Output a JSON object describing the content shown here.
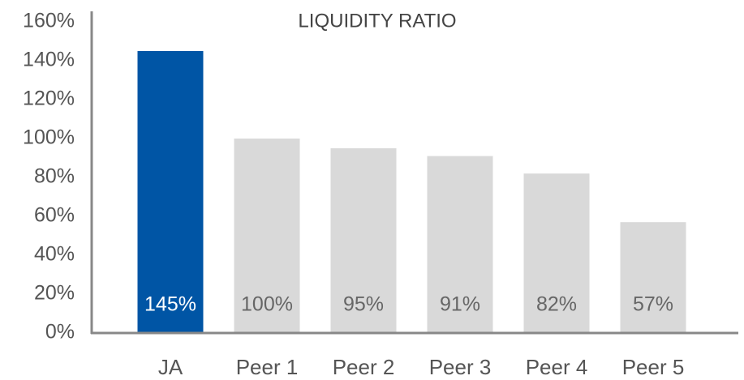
{
  "chart_data": {
    "type": "bar",
    "title": "LIQUIDITY RATIO",
    "categories": [
      "JA",
      "Peer 1",
      "Peer 2",
      "Peer 3",
      "Peer 4",
      "Peer 5"
    ],
    "values": [
      145,
      100,
      95,
      91,
      82,
      57
    ],
    "value_labels": [
      "145%",
      "100%",
      "95%",
      "91%",
      "82%",
      "57%"
    ],
    "colors": [
      "#0055a5",
      "#d9d9d9",
      "#d9d9d9",
      "#d9d9d9",
      "#d9d9d9",
      "#d9d9d9"
    ],
    "label_colors": [
      "#ffffff",
      "#666666",
      "#666666",
      "#666666",
      "#666666",
      "#666666"
    ],
    "ylim": [
      0,
      160
    ],
    "yticks": [
      {
        "value": 0,
        "label": "0%"
      },
      {
        "value": 20,
        "label": "20%"
      },
      {
        "value": 40,
        "label": "40%"
      },
      {
        "value": 60,
        "label": "60%"
      },
      {
        "value": 80,
        "label": "80%"
      },
      {
        "value": 100,
        "label": "100%"
      },
      {
        "value": 120,
        "label": "120%"
      },
      {
        "value": 140,
        "label": "140%"
      },
      {
        "value": 160,
        "label": "160%"
      }
    ],
    "grid": false
  }
}
